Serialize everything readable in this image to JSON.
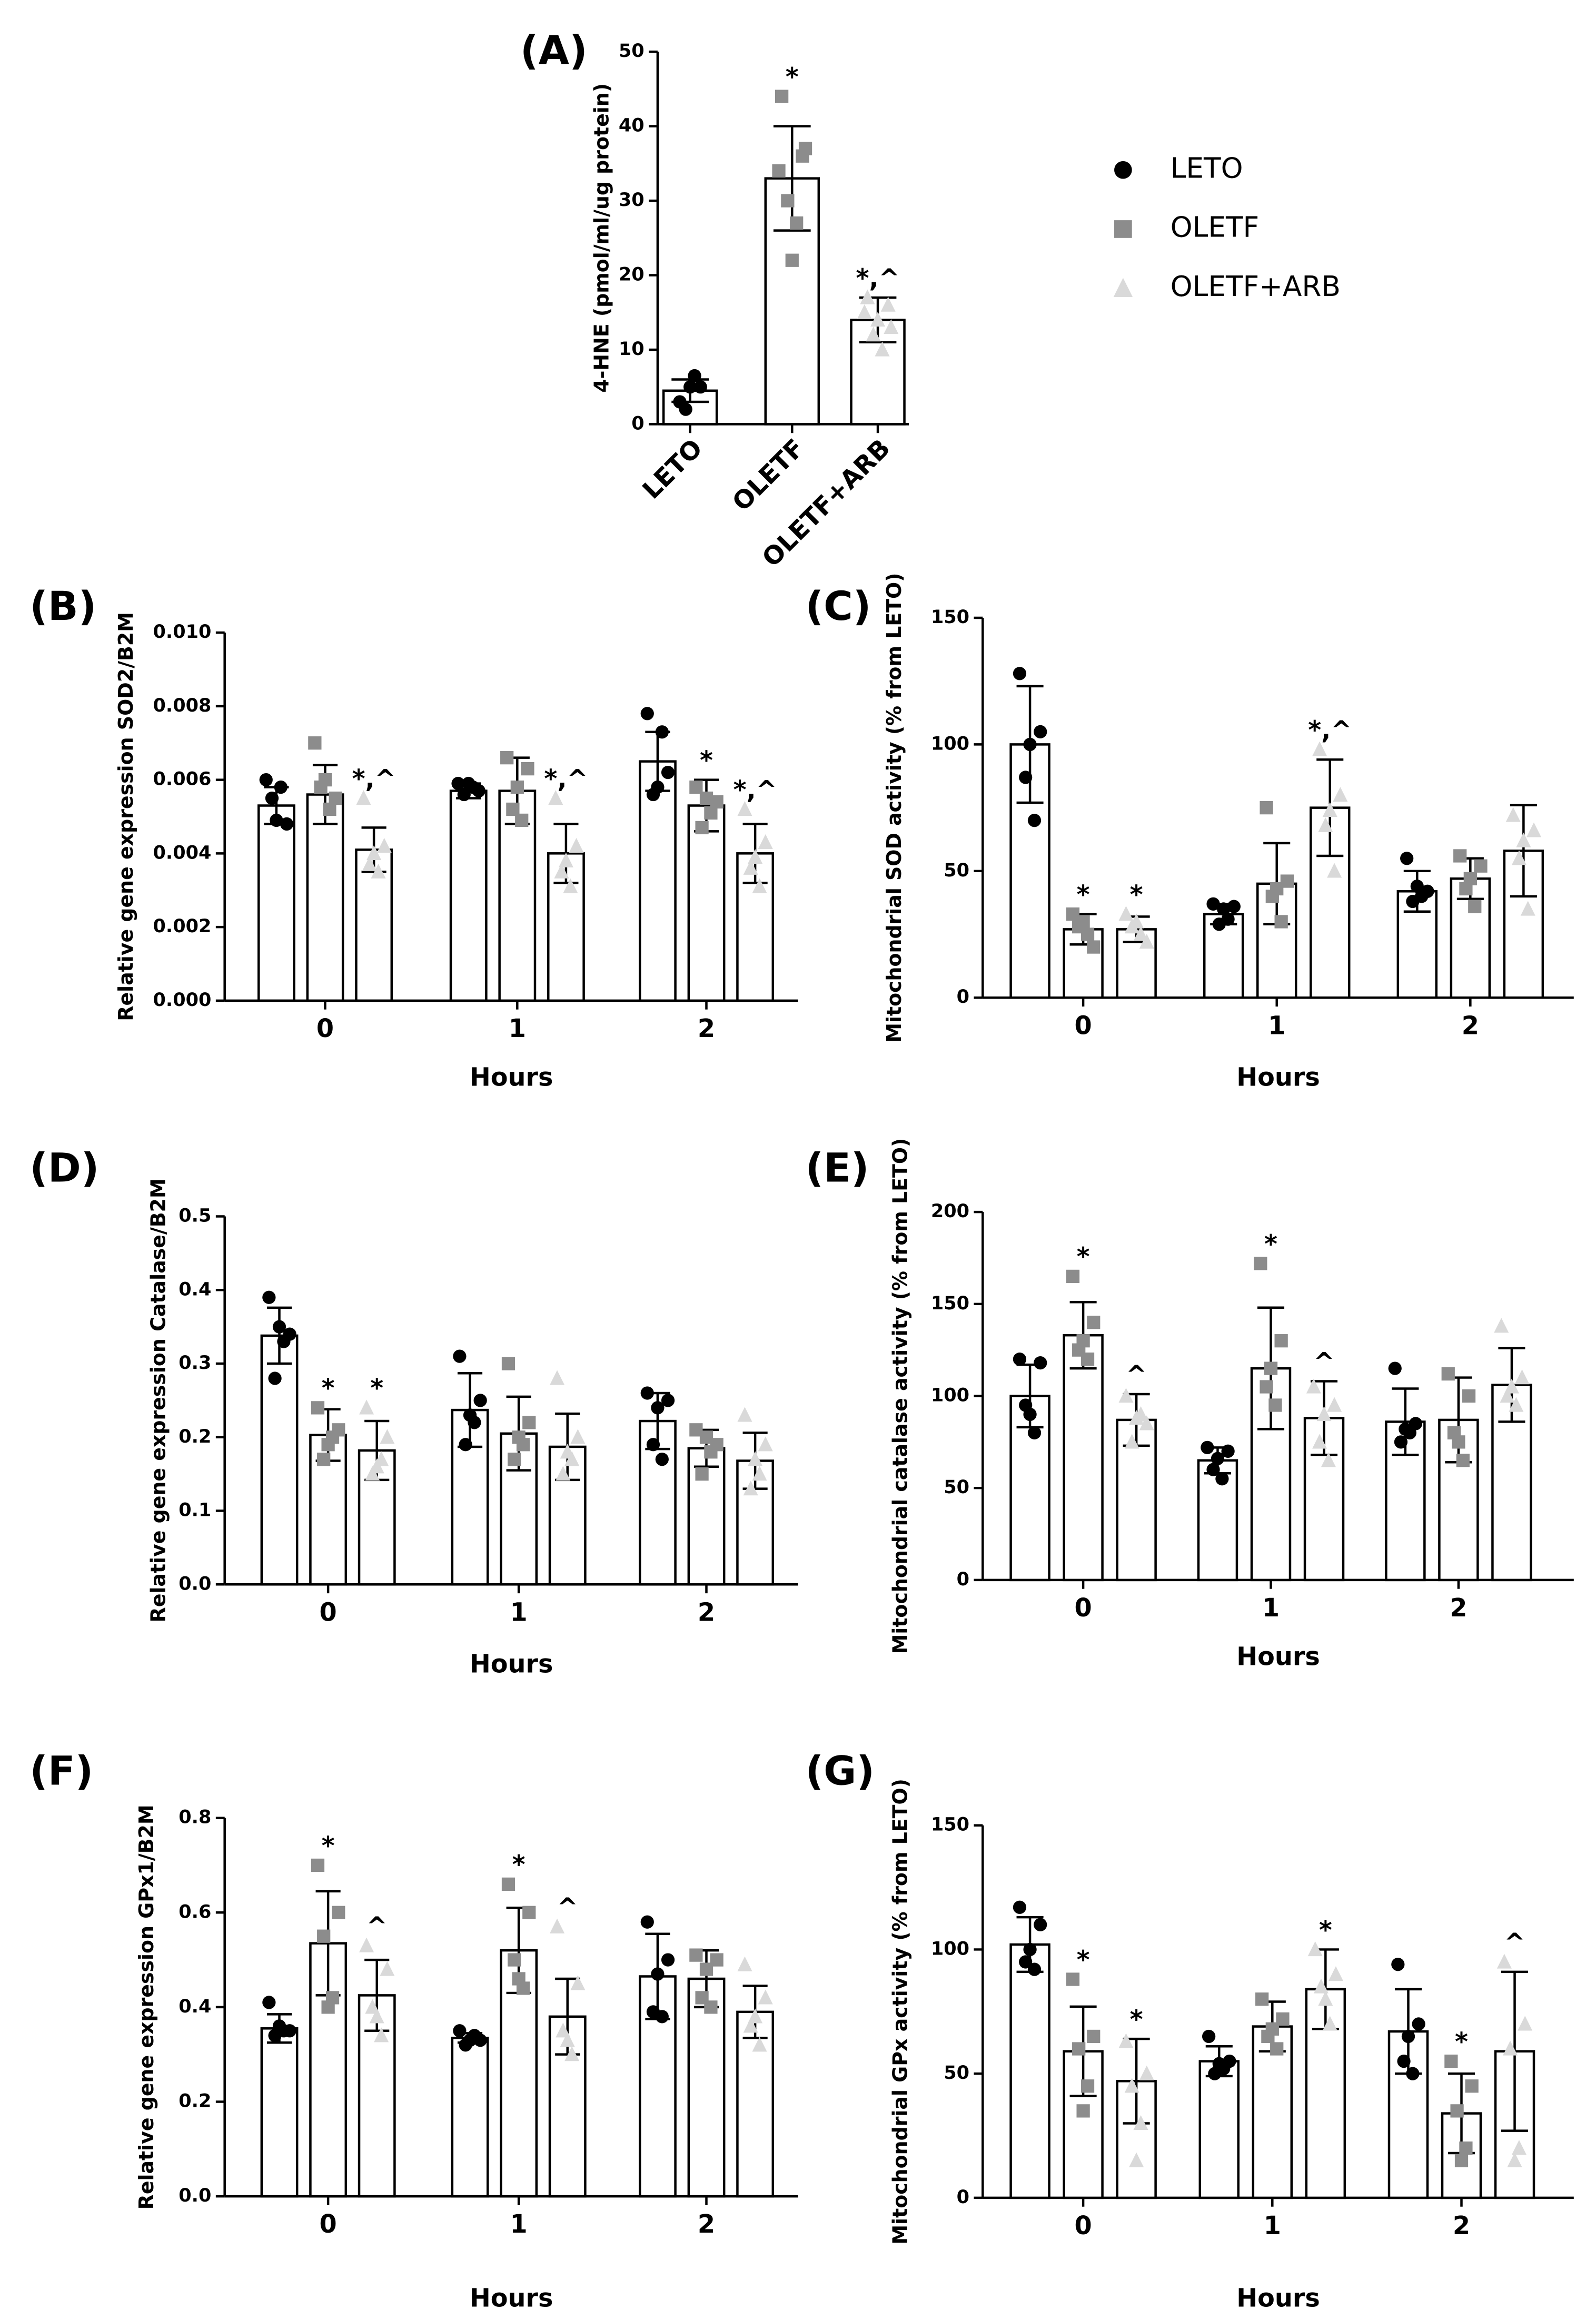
{
  "legend": [
    {
      "name": "LETO",
      "color": "#000000",
      "marker": "circle"
    },
    {
      "name": "OLETF",
      "color": "#8c8c8c",
      "marker": "square"
    },
    {
      "name": "OLETF+ARB",
      "color": "#d9d9d9",
      "marker": "triangle"
    }
  ],
  "chart_data": [
    {
      "type": "bar",
      "panel": "(A)",
      "ylabel": "4-HNE (pmol/ml/ug protein)",
      "categories": [
        "LETO",
        "OLETF",
        "OLETF+ARB"
      ],
      "values": [
        4.5,
        33,
        14
      ],
      "errors": [
        1.5,
        7,
        3
      ],
      "points": [
        [
          3,
          5,
          2,
          6.5,
          5
        ],
        [
          44,
          36,
          30,
          27,
          22,
          34,
          37
        ],
        [
          17,
          16,
          12,
          10,
          14,
          15,
          13
        ]
      ],
      "annotations": [
        null,
        "*",
        "*,^"
      ],
      "ylim": [
        0,
        50
      ],
      "yticks": [
        0,
        10,
        20,
        30,
        40,
        50
      ]
    },
    {
      "type": "grouped_bar",
      "panel": "(B)",
      "ylabel": "Relative gene expression SOD2/B2M",
      "xlabel": "Hours",
      "categories": [
        "0",
        "1",
        "2"
      ],
      "ylim": [
        0,
        0.01
      ],
      "yticks": [
        {
          "value": 0,
          "label": "0.000"
        },
        {
          "value": 0.002,
          "label": "0.002"
        },
        {
          "value": 0.004,
          "label": "0.004"
        },
        {
          "value": 0.006,
          "label": "0.006"
        },
        {
          "value": 0.008,
          "label": "0.008"
        },
        {
          "value": 0.01,
          "label": "0.010"
        }
      ],
      "series": [
        {
          "values": [
            0.0053,
            0.0057,
            0.0065
          ],
          "errors": [
            0.0005,
            0.0002,
            0.0008
          ],
          "points": [
            [
              0.006,
              0.0048,
              0.0055,
              0.0058,
              0.0049
            ],
            [
              0.0059,
              0.0057,
              0.0056,
              0.0058,
              0.0059
            ],
            [
              0.0078,
              0.0062,
              0.0056,
              0.0073,
              0.0058
            ]
          ],
          "annotations": [
            null,
            null,
            null
          ]
        },
        {
          "values": [
            0.0056,
            0.0057,
            0.0053
          ],
          "errors": [
            0.0008,
            0.0009,
            0.0007
          ],
          "points": [
            [
              0.007,
              0.0055,
              0.0058,
              0.0052,
              0.006
            ],
            [
              0.0066,
              0.0063,
              0.0052,
              0.0049,
              0.0058
            ],
            [
              0.0058,
              0.0054,
              0.0047,
              0.0051,
              0.0055
            ]
          ],
          "annotations": [
            null,
            null,
            "*"
          ]
        },
        {
          "values": [
            0.0041,
            0.004,
            0.004
          ],
          "errors": [
            0.0006,
            0.0008,
            0.0008
          ],
          "points": [
            [
              0.0055,
              0.0042,
              0.0037,
              0.0035,
              0.004
            ],
            [
              0.0055,
              0.0042,
              0.0035,
              0.0031,
              0.0038
            ],
            [
              0.0052,
              0.0043,
              0.0036,
              0.0031,
              0.0039
            ]
          ],
          "annotations": [
            "*,^",
            "*,^",
            "*,^"
          ]
        }
      ]
    },
    {
      "type": "grouped_bar",
      "panel": "(C)",
      "ylabel": "Mitochondrial SOD activity (% from LETO)",
      "xlabel": "Hours",
      "categories": [
        "0",
        "1",
        "2"
      ],
      "ylim": [
        0,
        150
      ],
      "yticks": [
        0,
        50,
        100,
        150
      ],
      "series": [
        {
          "values": [
            100,
            33,
            42
          ],
          "errors": [
            23,
            4,
            8
          ],
          "points": [
            [
              128,
              105,
              87,
              70,
              100
            ],
            [
              37,
              36,
              29,
              31,
              35
            ],
            [
              55,
              42,
              38,
              40,
              44
            ]
          ],
          "annotations": [
            null,
            null,
            null
          ]
        },
        {
          "values": [
            27,
            45,
            47
          ],
          "errors": [
            6,
            16,
            8
          ],
          "points": [
            [
              33,
              20,
              28,
              25,
              30
            ],
            [
              75,
              46,
              40,
              30,
              43
            ],
            [
              56,
              52,
              43,
              36,
              47
            ]
          ],
          "annotations": [
            "*",
            null,
            null
          ]
        },
        {
          "values": [
            27,
            75,
            58
          ],
          "errors": [
            5,
            19,
            18
          ],
          "points": [
            [
              33,
              22,
              28,
              25,
              30
            ],
            [
              98,
              80,
              68,
              50,
              74
            ],
            [
              72,
              66,
              55,
              35,
              62
            ]
          ],
          "annotations": [
            "*",
            "*,^",
            null
          ]
        }
      ]
    },
    {
      "type": "grouped_bar",
      "panel": "(D)",
      "ylabel": "Relative gene expression Catalase/B2M",
      "xlabel": "Hours",
      "categories": [
        "0",
        "1",
        "2"
      ],
      "ylim": [
        0,
        0.5
      ],
      "yticks": [
        {
          "value": 0,
          "label": "0.0"
        },
        0.1,
        0.2,
        0.3,
        0.4,
        0.5
      ],
      "series": [
        {
          "values": [
            0.338,
            0.237,
            0.222
          ],
          "errors": [
            0.038,
            0.05,
            0.038
          ],
          "points": [
            [
              0.39,
              0.34,
              0.28,
              0.33,
              0.35
            ],
            [
              0.31,
              0.25,
              0.19,
              0.22,
              0.23
            ],
            [
              0.26,
              0.25,
              0.19,
              0.17,
              0.24
            ]
          ],
          "annotations": [
            null,
            null,
            null
          ]
        },
        {
          "values": [
            0.203,
            0.205,
            0.185
          ],
          "errors": [
            0.035,
            0.05,
            0.025
          ],
          "points": [
            [
              0.24,
              0.21,
              0.17,
              0.2,
              0.19
            ],
            [
              0.3,
              0.22,
              0.17,
              0.19,
              0.2
            ],
            [
              0.21,
              0.19,
              0.15,
              0.18,
              0.2
            ]
          ],
          "annotations": [
            "*",
            null,
            null
          ]
        },
        {
          "values": [
            0.182,
            0.187,
            0.168
          ],
          "errors": [
            0.04,
            0.045,
            0.038
          ],
          "points": [
            [
              0.24,
              0.2,
              0.15,
              0.17,
              0.16
            ],
            [
              0.28,
              0.2,
              0.15,
              0.17,
              0.18
            ],
            [
              0.23,
              0.19,
              0.13,
              0.15,
              0.17
            ]
          ],
          "annotations": [
            "*",
            null,
            null
          ]
        }
      ]
    },
    {
      "type": "grouped_bar",
      "panel": "(E)",
      "ylabel": "Mitochondrial catalase activity (% from LETO)",
      "xlabel": "Hours",
      "categories": [
        "0",
        "1",
        "2"
      ],
      "ylim": [
        0,
        200
      ],
      "yticks": [
        0,
        50,
        100,
        150,
        200
      ],
      "series": [
        {
          "values": [
            100,
            65,
            86
          ],
          "errors": [
            17,
            7,
            18
          ],
          "points": [
            [
              120,
              118,
              95,
              80,
              90
            ],
            [
              72,
              70,
              60,
              55,
              66
            ],
            [
              115,
              85,
              75,
              80,
              82
            ]
          ],
          "annotations": [
            null,
            null,
            null
          ]
        },
        {
          "values": [
            133,
            115,
            87
          ],
          "errors": [
            18,
            33,
            23
          ],
          "points": [
            [
              165,
              140,
              125,
              120,
              130
            ],
            [
              172,
              130,
              105,
              95,
              115
            ],
            [
              112,
              100,
              80,
              65,
              75
            ]
          ],
          "annotations": [
            "*",
            "*",
            null
          ]
        },
        {
          "values": [
            87,
            88,
            106
          ],
          "errors": [
            14,
            20,
            20
          ],
          "points": [
            [
              100,
              85,
              75,
              90,
              88
            ],
            [
              105,
              95,
              75,
              65,
              90
            ],
            [
              138,
              110,
              100,
              95,
              105
            ]
          ],
          "annotations": [
            "^",
            "^",
            null
          ]
        }
      ]
    },
    {
      "type": "grouped_bar",
      "panel": "(F)",
      "ylabel": "Relative gene expression GPx1/B2M",
      "xlabel": "Hours",
      "categories": [
        "0",
        "1",
        "2"
      ],
      "ylim": [
        0,
        0.8
      ],
      "yticks": [
        {
          "value": 0,
          "label": "0.0"
        },
        0.2,
        0.4,
        0.6,
        0.8
      ],
      "series": [
        {
          "values": [
            0.355,
            0.335,
            0.465
          ],
          "errors": [
            0.03,
            0.01,
            0.09
          ],
          "points": [
            [
              0.41,
              0.35,
              0.34,
              0.35,
              0.36
            ],
            [
              0.35,
              0.33,
              0.32,
              0.34,
              0.33
            ],
            [
              0.58,
              0.5,
              0.39,
              0.38,
              0.47
            ]
          ],
          "annotations": [
            null,
            null,
            null
          ]
        },
        {
          "values": [
            0.535,
            0.52,
            0.46
          ],
          "errors": [
            0.11,
            0.09,
            0.06
          ],
          "points": [
            [
              0.7,
              0.6,
              0.55,
              0.42,
              0.4
            ],
            [
              0.66,
              0.6,
              0.5,
              0.44,
              0.46
            ],
            [
              0.51,
              0.5,
              0.42,
              0.4,
              0.48
            ]
          ],
          "annotations": [
            "*",
            "*",
            null
          ]
        },
        {
          "values": [
            0.425,
            0.38,
            0.39
          ],
          "errors": [
            0.075,
            0.08,
            0.055
          ],
          "points": [
            [
              0.53,
              0.48,
              0.4,
              0.34,
              0.38
            ],
            [
              0.57,
              0.45,
              0.35,
              0.3,
              0.33
            ],
            [
              0.49,
              0.42,
              0.36,
              0.32,
              0.38
            ]
          ],
          "annotations": [
            "^",
            "^",
            null
          ]
        }
      ]
    },
    {
      "type": "grouped_bar",
      "panel": "(G)",
      "ylabel": "Mitochondrial GPx activity (% from LETO)",
      "xlabel": "Hours",
      "categories": [
        "0",
        "1",
        "2"
      ],
      "ylim": [
        0,
        150
      ],
      "yticks": [
        0,
        50,
        100,
        150
      ],
      "series": [
        {
          "values": [
            102,
            55,
            67
          ],
          "errors": [
            11,
            6,
            17
          ],
          "points": [
            [
              117,
              110,
              95,
              92,
              100
            ],
            [
              65,
              55,
              50,
              52,
              54
            ],
            [
              94,
              70,
              55,
              50,
              65
            ]
          ],
          "annotations": [
            null,
            null,
            null
          ]
        },
        {
          "values": [
            59,
            69,
            34
          ],
          "errors": [
            18,
            10,
            16
          ],
          "points": [
            [
              88,
              65,
              60,
              45,
              35
            ],
            [
              80,
              72,
              65,
              60,
              68
            ],
            [
              55,
              45,
              35,
              20,
              15
            ]
          ],
          "annotations": [
            "*",
            null,
            "*"
          ]
        },
        {
          "values": [
            47,
            84,
            59
          ],
          "errors": [
            17,
            16,
            32
          ],
          "points": [
            [
              63,
              50,
              45,
              30,
              15
            ],
            [
              100,
              90,
              85,
              70,
              80
            ],
            [
              95,
              70,
              60,
              20,
              15
            ]
          ],
          "annotations": [
            "*",
            "*",
            "^"
          ]
        }
      ]
    }
  ]
}
